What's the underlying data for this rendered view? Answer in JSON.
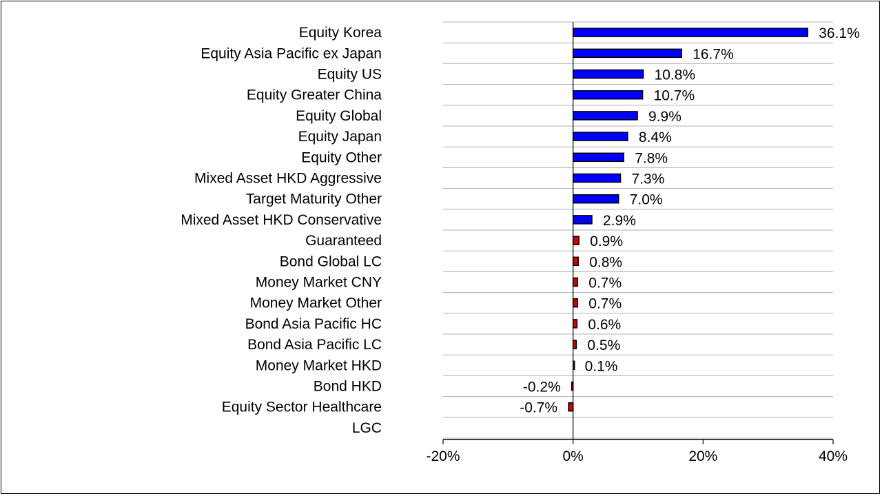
{
  "chart_data": {
    "type": "bar",
    "orientation": "horizontal",
    "categories": [
      "Equity Korea",
      "Equity Asia Pacific ex Japan",
      "Equity US",
      "Equity Greater China",
      "Equity Global",
      "Equity Japan",
      "Equity Other",
      "Mixed Asset HKD Aggressive",
      "Target Maturity Other",
      "Mixed Asset HKD Conservative",
      "Guaranteed",
      "Bond Global LC",
      "Money Market CNY",
      "Money Market Other",
      "Bond Asia Pacific HC",
      "Bond Asia Pacific LC",
      "Money Market HKD",
      "Bond HKD",
      "Equity Sector Healthcare",
      "LGC"
    ],
    "values": [
      36.1,
      16.7,
      10.8,
      10.7,
      9.9,
      8.4,
      7.8,
      7.3,
      7.0,
      2.9,
      0.9,
      0.8,
      0.7,
      0.7,
      0.6,
      0.5,
      0.1,
      -0.2,
      -0.7,
      null
    ],
    "value_labels": [
      "36.1%",
      "16.7%",
      "10.8%",
      "10.7%",
      "9.9%",
      "8.4%",
      "7.8%",
      "7.3%",
      "7.0%",
      "2.9%",
      "0.9%",
      "0.8%",
      "0.7%",
      "0.7%",
      "0.6%",
      "0.5%",
      "0.1%",
      "-0.2%",
      "-0.7%",
      ""
    ],
    "bar_colors": [
      "#0000FF",
      "#0000FF",
      "#0000FF",
      "#0000FF",
      "#0000FF",
      "#0000FF",
      "#0000FF",
      "#0000FF",
      "#0000FF",
      "#0000FF",
      "#CC0000",
      "#CC0000",
      "#CC0000",
      "#CC0000",
      "#CC0000",
      "#CC0000",
      "#CC0000",
      "#CC0000",
      "#CC0000",
      "#CC0000"
    ],
    "xlim": [
      -20,
      40
    ],
    "xticks": [
      -20,
      0,
      20,
      40
    ],
    "xtick_labels": [
      "-20%",
      "0%",
      "20%",
      "40%"
    ],
    "grid": "horizontal",
    "title": "",
    "xlabel": "",
    "ylabel": ""
  }
}
